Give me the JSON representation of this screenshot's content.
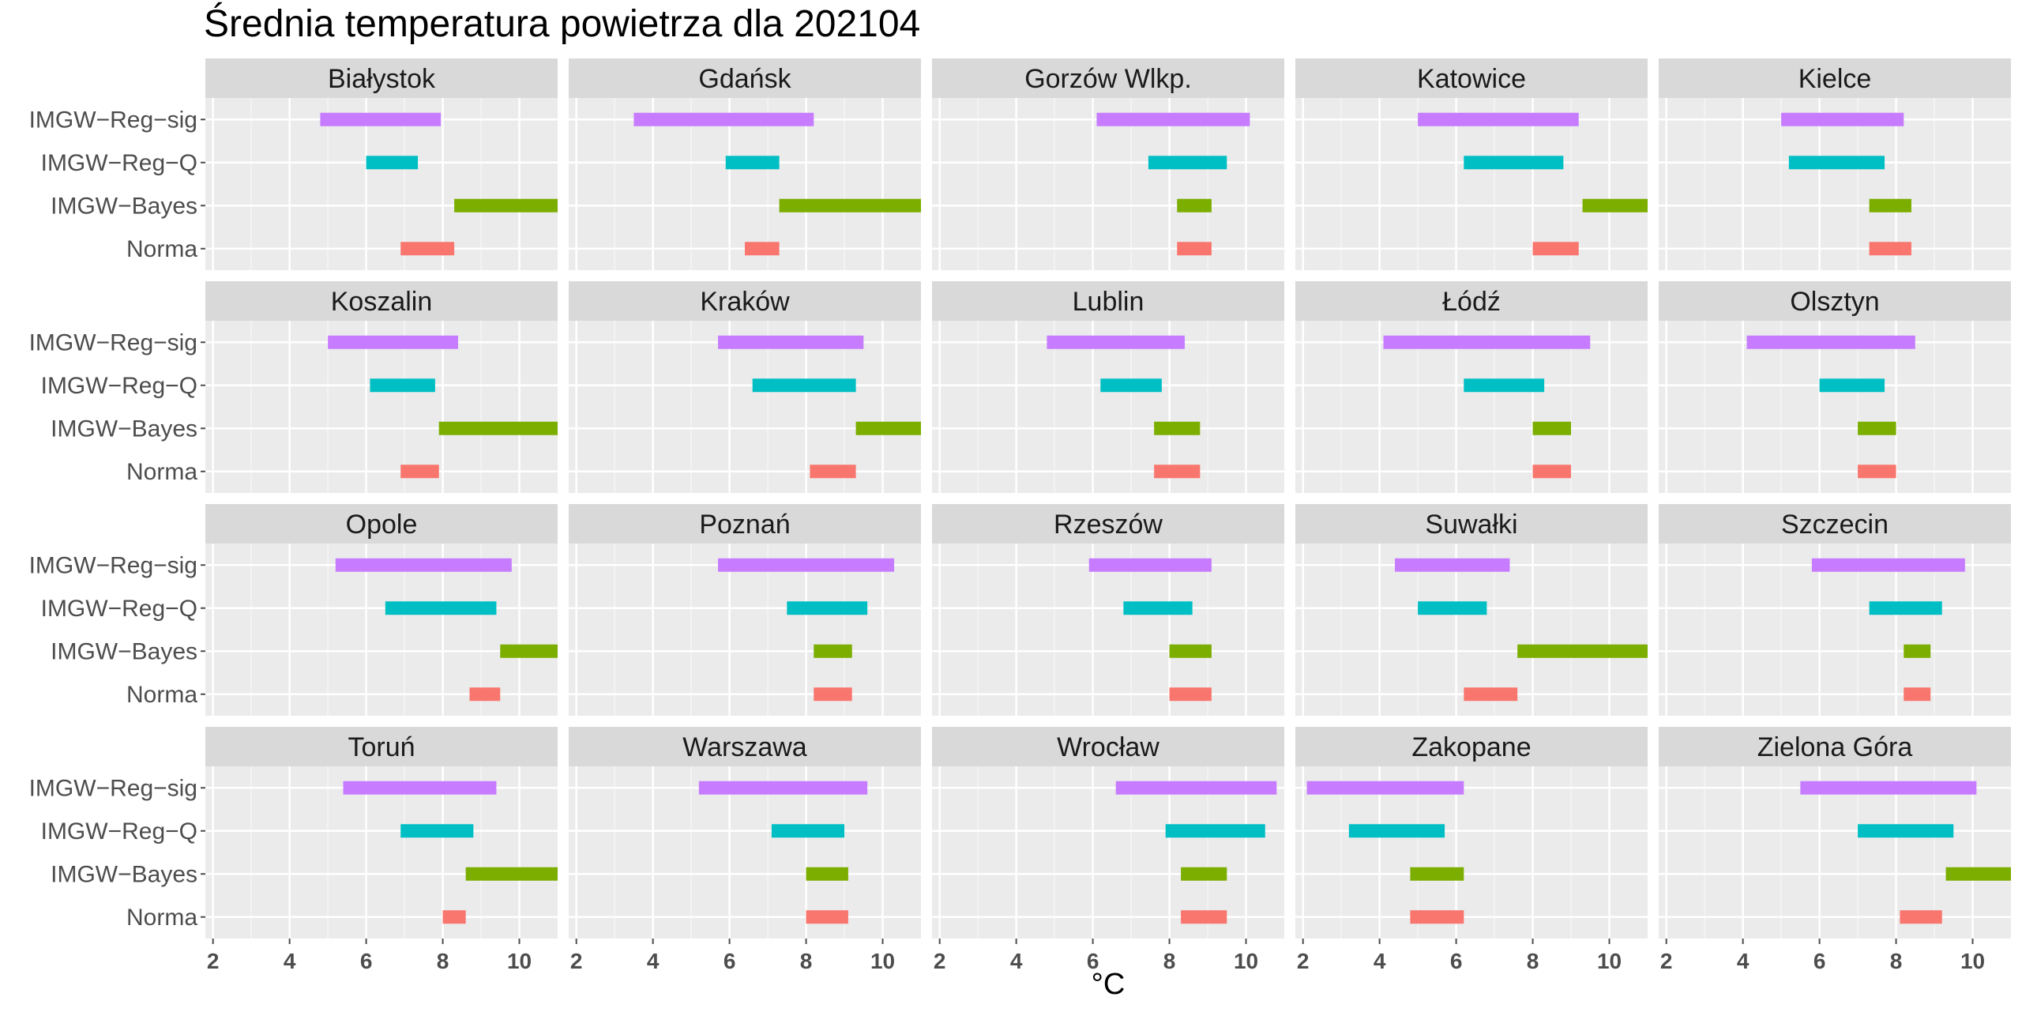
{
  "chart_data": {
    "type": "range-bar",
    "title": "Średnia temperatura powietrza dla 202104",
    "xlabel": "°C",
    "ylabel": "",
    "xlim": [
      1.8,
      11.0
    ],
    "xticks": [
      2,
      4,
      6,
      8,
      10
    ],
    "grid": true,
    "legend": "none",
    "facet_layout": [
      4,
      5
    ],
    "categories": [
      "IMGW−Reg−sig",
      "IMGW−Reg−Q",
      "IMGW−Bayes",
      "Norma"
    ],
    "colors": {
      "IMGW−Reg−sig": "#C77CFF",
      "IMGW−Reg−Q": "#00BFC4",
      "IMGW−Bayes": "#7CAE00",
      "Norma": "#F8766D"
    },
    "panels": [
      {
        "name": "Białystok",
        "ranges": {
          "IMGW−Reg−sig": [
            4.8,
            7.95
          ],
          "IMGW−Reg−Q": [
            6.0,
            7.35
          ],
          "IMGW−Bayes": [
            8.3,
            11.0
          ],
          "Norma": [
            6.9,
            8.3
          ]
        }
      },
      {
        "name": "Gdańsk",
        "ranges": {
          "IMGW−Reg−sig": [
            3.5,
            8.2
          ],
          "IMGW−Reg−Q": [
            5.9,
            7.3
          ],
          "IMGW−Bayes": [
            7.3,
            11.0
          ],
          "Norma": [
            6.4,
            7.3
          ]
        }
      },
      {
        "name": "Gorzów Wlkp.",
        "ranges": {
          "IMGW−Reg−sig": [
            6.1,
            10.1
          ],
          "IMGW−Reg−Q": [
            7.45,
            9.5
          ],
          "IMGW−Bayes": [
            8.2,
            9.1
          ],
          "Norma": [
            8.2,
            9.1
          ]
        }
      },
      {
        "name": "Katowice",
        "ranges": {
          "IMGW−Reg−sig": [
            5.0,
            9.2
          ],
          "IMGW−Reg−Q": [
            6.2,
            8.8
          ],
          "IMGW−Bayes": [
            9.3,
            11.0
          ],
          "Norma": [
            8.0,
            9.2
          ]
        }
      },
      {
        "name": "Kielce",
        "ranges": {
          "IMGW−Reg−sig": [
            5.0,
            8.2
          ],
          "IMGW−Reg−Q": [
            5.2,
            7.7
          ],
          "IMGW−Bayes": [
            7.3,
            8.4
          ],
          "Norma": [
            7.3,
            8.4
          ]
        }
      },
      {
        "name": "Koszalin",
        "ranges": {
          "IMGW−Reg−sig": [
            5.0,
            8.4
          ],
          "IMGW−Reg−Q": [
            6.1,
            7.8
          ],
          "IMGW−Bayes": [
            7.9,
            11.0
          ],
          "Norma": [
            6.9,
            7.9
          ]
        }
      },
      {
        "name": "Kraków",
        "ranges": {
          "IMGW−Reg−sig": [
            5.7,
            9.5
          ],
          "IMGW−Reg−Q": [
            6.6,
            9.3
          ],
          "IMGW−Bayes": [
            9.3,
            11.0
          ],
          "Norma": [
            8.1,
            9.3
          ]
        }
      },
      {
        "name": "Lublin",
        "ranges": {
          "IMGW−Reg−sig": [
            4.8,
            8.4
          ],
          "IMGW−Reg−Q": [
            6.2,
            7.8
          ],
          "IMGW−Bayes": [
            7.6,
            8.8
          ],
          "Norma": [
            7.6,
            8.8
          ]
        }
      },
      {
        "name": "Łódź",
        "ranges": {
          "IMGW−Reg−sig": [
            4.1,
            9.5
          ],
          "IMGW−Reg−Q": [
            6.2,
            8.3
          ],
          "IMGW−Bayes": [
            8.0,
            9.0
          ],
          "Norma": [
            8.0,
            9.0
          ]
        }
      },
      {
        "name": "Olsztyn",
        "ranges": {
          "IMGW−Reg−sig": [
            4.1,
            8.5
          ],
          "IMGW−Reg−Q": [
            6.0,
            7.7
          ],
          "IMGW−Bayes": [
            7.0,
            8.0
          ],
          "Norma": [
            7.0,
            8.0
          ]
        }
      },
      {
        "name": "Opole",
        "ranges": {
          "IMGW−Reg−sig": [
            5.2,
            9.8
          ],
          "IMGW−Reg−Q": [
            6.5,
            9.4
          ],
          "IMGW−Bayes": [
            9.5,
            11.0
          ],
          "Norma": [
            8.7,
            9.5
          ]
        }
      },
      {
        "name": "Poznań",
        "ranges": {
          "IMGW−Reg−sig": [
            5.7,
            10.3
          ],
          "IMGW−Reg−Q": [
            7.5,
            9.6
          ],
          "IMGW−Bayes": [
            8.2,
            9.2
          ],
          "Norma": [
            8.2,
            9.2
          ]
        }
      },
      {
        "name": "Rzeszów",
        "ranges": {
          "IMGW−Reg−sig": [
            5.9,
            9.1
          ],
          "IMGW−Reg−Q": [
            6.8,
            8.6
          ],
          "IMGW−Bayes": [
            8.0,
            9.1
          ],
          "Norma": [
            8.0,
            9.1
          ]
        }
      },
      {
        "name": "Suwałki",
        "ranges": {
          "IMGW−Reg−sig": [
            4.4,
            7.4
          ],
          "IMGW−Reg−Q": [
            5.0,
            6.8
          ],
          "IMGW−Bayes": [
            7.6,
            11.0
          ],
          "Norma": [
            6.2,
            7.6
          ]
        }
      },
      {
        "name": "Szczecin",
        "ranges": {
          "IMGW−Reg−sig": [
            5.8,
            9.8
          ],
          "IMGW−Reg−Q": [
            7.3,
            9.2
          ],
          "IMGW−Bayes": [
            8.2,
            8.9
          ],
          "Norma": [
            8.2,
            8.9
          ]
        }
      },
      {
        "name": "Toruń",
        "ranges": {
          "IMGW−Reg−sig": [
            5.4,
            9.4
          ],
          "IMGW−Reg−Q": [
            6.9,
            8.8
          ],
          "IMGW−Bayes": [
            8.6,
            11.0
          ],
          "Norma": [
            8.0,
            8.6
          ]
        }
      },
      {
        "name": "Warszawa",
        "ranges": {
          "IMGW−Reg−sig": [
            5.2,
            9.6
          ],
          "IMGW−Reg−Q": [
            7.1,
            9.0
          ],
          "IMGW−Bayes": [
            8.0,
            9.1
          ],
          "Norma": [
            8.0,
            9.1
          ]
        }
      },
      {
        "name": "Wrocław",
        "ranges": {
          "IMGW−Reg−sig": [
            6.6,
            10.8
          ],
          "IMGW−Reg−Q": [
            7.9,
            10.5
          ],
          "IMGW−Bayes": [
            8.3,
            9.5
          ],
          "Norma": [
            8.3,
            9.5
          ]
        }
      },
      {
        "name": "Zakopane",
        "ranges": {
          "IMGW−Reg−sig": [
            2.1,
            6.2
          ],
          "IMGW−Reg−Q": [
            3.2,
            5.7
          ],
          "IMGW−Bayes": [
            4.8,
            6.2
          ],
          "Norma": [
            4.8,
            6.2
          ]
        }
      },
      {
        "name": "Zielona Góra",
        "ranges": {
          "IMGW−Reg−sig": [
            5.5,
            10.1
          ],
          "IMGW−Reg−Q": [
            7.0,
            9.5
          ],
          "IMGW−Bayes": [
            9.3,
            11.0
          ],
          "Norma": [
            8.1,
            9.2
          ]
        }
      }
    ]
  }
}
